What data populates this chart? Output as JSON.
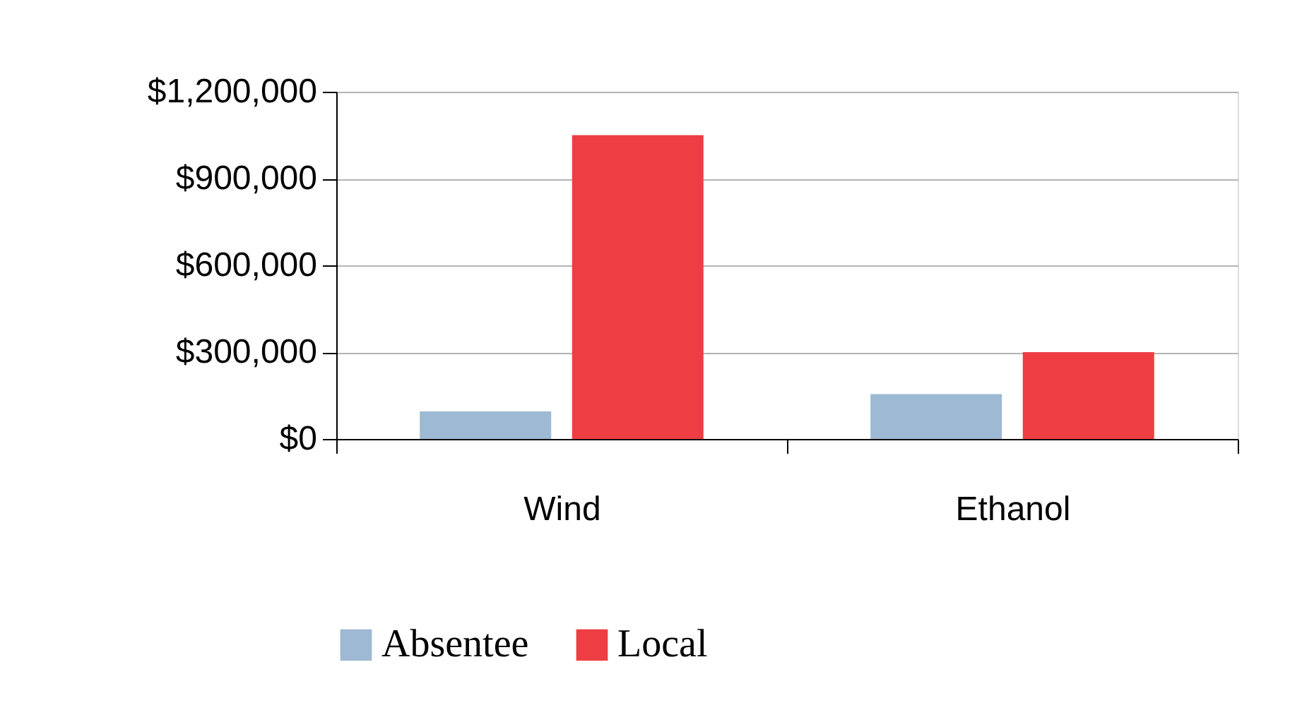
{
  "chart_data": {
    "type": "bar",
    "categories": [
      "Wind",
      "Ethanol"
    ],
    "series": [
      {
        "name": "Absentee",
        "color": "#9db9d3",
        "values": [
          95000,
          155000
        ]
      },
      {
        "name": "Local",
        "color": "#ee3e44",
        "values": [
          1050000,
          300000
        ]
      }
    ],
    "ylim": [
      0,
      1200000
    ],
    "yticks": [
      {
        "value": 0,
        "label": "$0"
      },
      {
        "value": 300000,
        "label": "$300,000"
      },
      {
        "value": 600000,
        "label": "$600,000"
      },
      {
        "value": 900000,
        "label": "$900,000"
      },
      {
        "value": 1200000,
        "label": "$1,200,000"
      }
    ],
    "grid": "y",
    "legend": "bottom"
  }
}
